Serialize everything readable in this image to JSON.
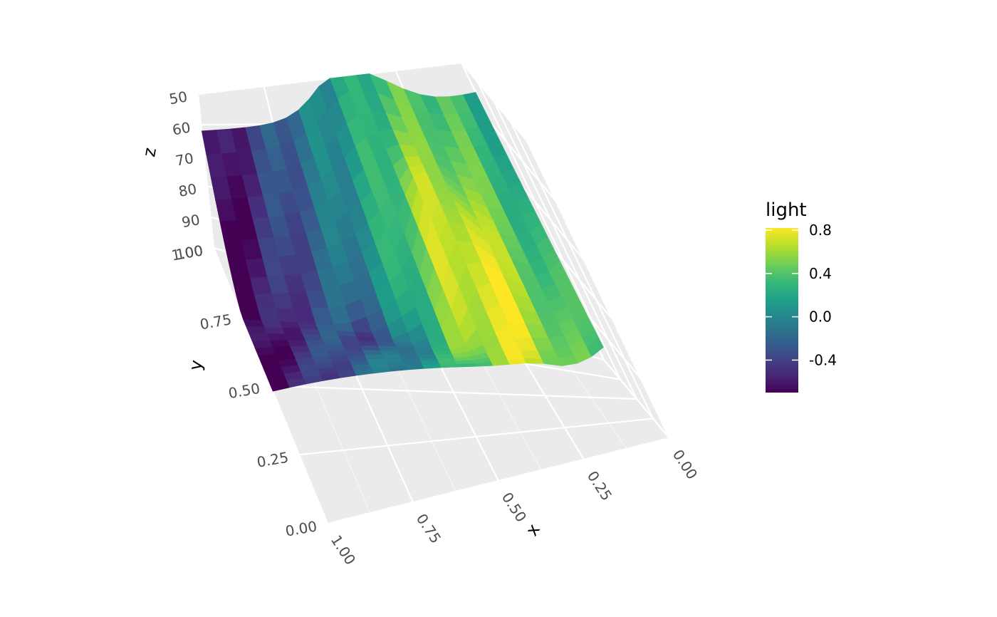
{
  "chart_data": {
    "type": "surface3d",
    "title": "",
    "axes": {
      "x": {
        "label": "x",
        "range": [
          0,
          1
        ],
        "ticks": [
          "0.00",
          "0.25",
          "0.50",
          "0.75",
          "1.00"
        ]
      },
      "y": {
        "label": "y",
        "range": [
          0,
          1
        ],
        "ticks": [
          "0.00",
          "0.25",
          "0.50",
          "0.75",
          "1.00"
        ]
      },
      "z": {
        "label": "z",
        "range": [
          50,
          100
        ],
        "reversed": true,
        "ticks": [
          "50",
          "60",
          "70",
          "80",
          "90",
          "100"
        ]
      }
    },
    "fill": {
      "variable": "light",
      "palette": "viridis",
      "range": [
        -0.7,
        0.82
      ],
      "ticks": [
        "0.8",
        "0.4",
        "0.0",
        "-0.4"
      ],
      "tick_values": [
        0.8,
        0.4,
        0.0,
        -0.4
      ],
      "colors": [
        "#440154",
        "#482878",
        "#3e4989",
        "#31688e",
        "#26828e",
        "#1f9e89",
        "#35b779",
        "#6ece58",
        "#b5de2b",
        "#fde725"
      ]
    },
    "grid": true,
    "panel_background": "#ebebeb",
    "legend_position": "right",
    "surface": {
      "x": [
        0.0,
        0.05,
        0.1,
        0.15,
        0.2,
        0.25,
        0.3,
        0.35,
        0.4,
        0.45,
        0.5,
        0.55,
        0.6,
        0.65,
        0.7,
        0.75,
        0.8,
        0.85,
        0.9,
        0.95,
        1.0
      ],
      "y": [
        0.5,
        0.525,
        0.55,
        0.575,
        0.6,
        0.625,
        0.65,
        0.675,
        0.7,
        0.725,
        0.75,
        0.775,
        0.8,
        0.825,
        0.85,
        0.875,
        0.9,
        0.925,
        0.95,
        0.975,
        1.0
      ],
      "y_edge_at_x0": 0.8,
      "y_edge_at_x1": 1.0,
      "z_base": 100,
      "z_peak_left": 62,
      "z_peak_right": 55
    }
  },
  "legend": {
    "title": "light"
  }
}
